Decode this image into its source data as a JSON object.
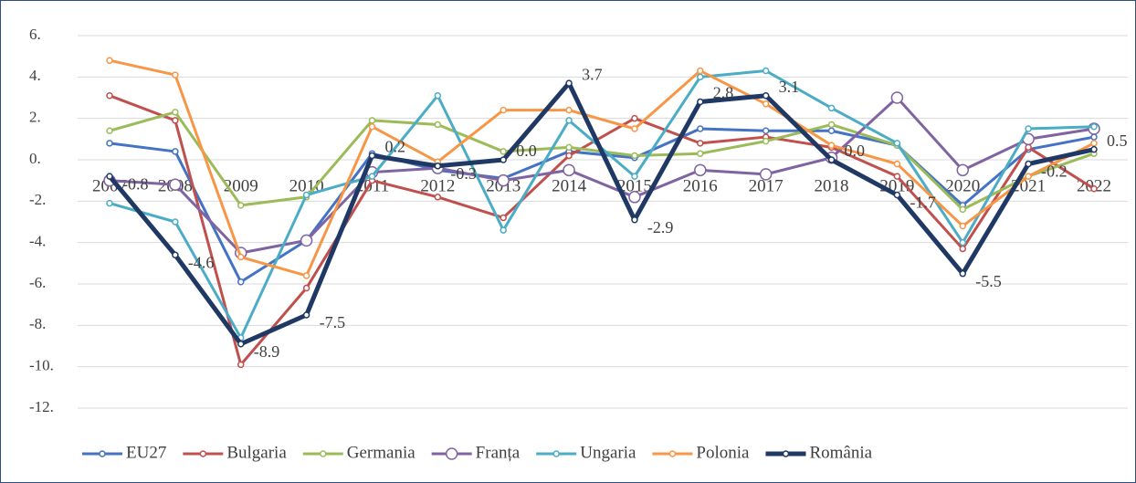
{
  "chart_data": {
    "type": "line",
    "categories": [
      "2007",
      "2008",
      "2009",
      "2010",
      "2011",
      "2012",
      "2013",
      "2014",
      "2015",
      "2016",
      "2017",
      "2018",
      "2019",
      "2020",
      "2021",
      "2022"
    ],
    "ylim": [
      -12,
      6
    ],
    "yticks": [
      {
        "value": 6,
        "label": "6."
      },
      {
        "value": 4,
        "label": "4."
      },
      {
        "value": 2,
        "label": "2."
      },
      {
        "value": 0,
        "label": "0."
      },
      {
        "value": -2,
        "label": "-2."
      },
      {
        "value": -4,
        "label": "-4."
      },
      {
        "value": -6,
        "label": "-6."
      },
      {
        "value": -8,
        "label": "-8."
      },
      {
        "value": -10,
        "label": "-10."
      },
      {
        "value": -12,
        "label": "-12."
      }
    ],
    "grid": true,
    "legend": "bottom",
    "series": [
      {
        "name": "EU27",
        "color": "#4472c4",
        "values": [
          0.8,
          0.4,
          -5.9,
          -3.9,
          0.3,
          -0.5,
          -0.9,
          0.4,
          0.1,
          1.5,
          1.4,
          1.4,
          0.7,
          -2.2,
          0.5,
          1.1
        ]
      },
      {
        "name": "Bulgaria",
        "color": "#c0504d",
        "values": [
          3.1,
          1.9,
          -9.9,
          -6.2,
          -1.0,
          -1.8,
          -2.8,
          0.2,
          2.0,
          0.8,
          1.1,
          0.6,
          -0.8,
          -4.3,
          0.6,
          -1.4
        ]
      },
      {
        "name": "Germania",
        "color": "#9bbb59",
        "values": [
          1.4,
          2.3,
          -2.2,
          -1.8,
          1.9,
          1.7,
          0.4,
          0.6,
          0.2,
          0.3,
          0.9,
          1.7,
          0.7,
          -2.4,
          -0.8,
          0.3
        ]
      },
      {
        "name": "Franța",
        "color": "#8064a2",
        "values": [
          -1.0,
          -1.2,
          -4.5,
          -3.9,
          -0.6,
          -0.4,
          -1.0,
          -0.5,
          -1.8,
          -0.5,
          -0.7,
          0.1,
          3.0,
          -0.5,
          1.0,
          1.5
        ]
      },
      {
        "name": "Ungaria",
        "color": "#4bacc6",
        "values": [
          -2.1,
          -3.0,
          -8.6,
          -1.7,
          -0.8,
          3.1,
          -3.4,
          1.9,
          -0.8,
          4.0,
          4.3,
          2.5,
          0.8,
          -4.0,
          1.5,
          1.6
        ]
      },
      {
        "name": "Polonia",
        "color": "#f79646",
        "values": [
          4.8,
          4.1,
          -4.7,
          -5.6,
          1.6,
          -0.1,
          2.4,
          2.4,
          1.5,
          4.3,
          2.7,
          0.7,
          -0.2,
          -3.2,
          -0.8,
          0.8
        ]
      },
      {
        "name": "România",
        "color": "#1f3864",
        "values": [
          -0.8,
          -4.6,
          -8.9,
          -7.5,
          0.2,
          -0.3,
          0.0,
          3.7,
          -2.9,
          2.8,
          3.1,
          0.0,
          -1.7,
          -5.5,
          -0.2,
          0.5
        ],
        "value_labels": [
          "-0.8",
          "-4.6",
          "-8.9",
          "-7.5",
          "0.2",
          "-0.3",
          "0.0",
          "3.7",
          "-2.9",
          "2.8",
          "3.1",
          "0.0",
          "-1.7",
          "-5.5",
          "-0.2",
          "0.5"
        ]
      }
    ]
  }
}
